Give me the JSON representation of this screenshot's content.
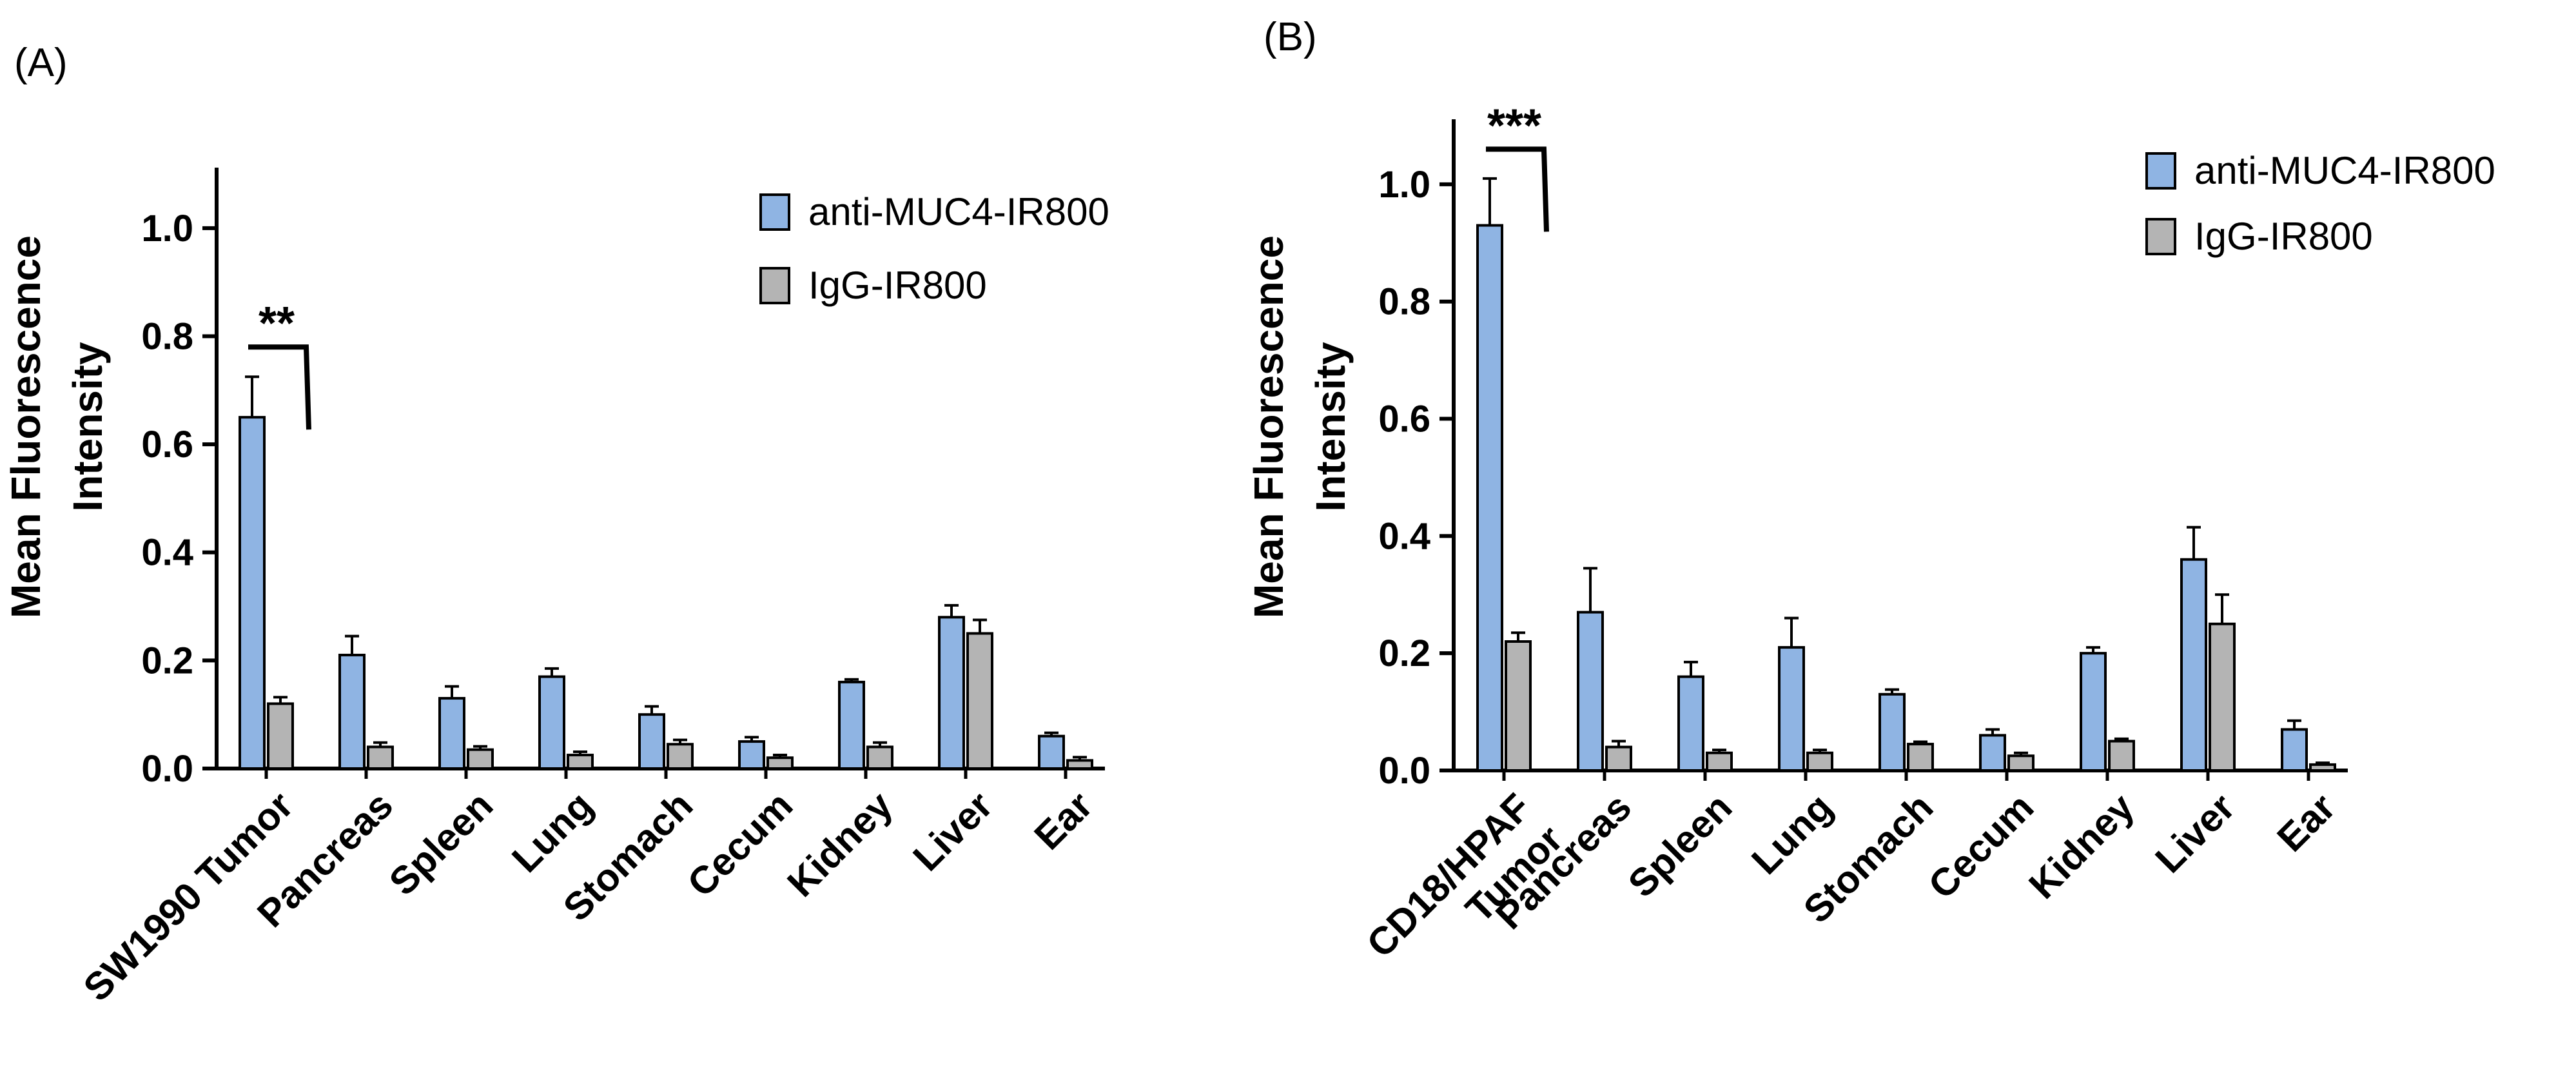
{
  "chart_data": [
    {
      "panel_label": "(A)",
      "type": "bar",
      "ylabel": [
        "Mean Fluorescence",
        "Intensity"
      ],
      "ylim": [
        0,
        1.1
      ],
      "yticks": [
        "0.0",
        "0.2",
        "0.4",
        "0.6",
        "0.8",
        "1.0"
      ],
      "categories": [
        [
          "SW1990 Tumor"
        ],
        [
          "Pancreas"
        ],
        [
          "Spleen"
        ],
        [
          "Lung"
        ],
        [
          "Stomach"
        ],
        [
          "Cecum"
        ],
        [
          "Kidney"
        ],
        [
          "Liver"
        ],
        [
          "Ear"
        ]
      ],
      "series": [
        {
          "name": "anti-MUC4-IR800",
          "color": "#8fb4e3",
          "values": [
            0.65,
            0.21,
            0.13,
            0.17,
            0.1,
            0.05,
            0.16,
            0.28,
            0.06
          ],
          "errors": [
            0.075,
            0.035,
            0.022,
            0.015,
            0.015,
            0.008,
            0.005,
            0.022,
            0.006
          ]
        },
        {
          "name": "IgG-IR800",
          "color": "#b4b4b4",
          "values": [
            0.12,
            0.04,
            0.035,
            0.025,
            0.045,
            0.02,
            0.04,
            0.25,
            0.015
          ],
          "errors": [
            0.012,
            0.008,
            0.006,
            0.006,
            0.008,
            0.005,
            0.008,
            0.025,
            0.006
          ]
        }
      ],
      "significance": {
        "label": "**",
        "category_index": 0,
        "level": 0.78
      },
      "legend_position": "top-right"
    },
    {
      "panel_label": "(B)",
      "type": "bar",
      "ylabel": [
        "Mean Fluorescence",
        "Intensity"
      ],
      "ylim": [
        0,
        1.1
      ],
      "yticks": [
        "0.0",
        "0.2",
        "0.4",
        "0.6",
        "0.8",
        "1.0"
      ],
      "categories": [
        [
          "CD18/HPAF",
          "Tumor"
        ],
        [
          "Pancreas"
        ],
        [
          "Spleen"
        ],
        [
          "Lung"
        ],
        [
          "Stomach"
        ],
        [
          "Cecum"
        ],
        [
          "Kidney"
        ],
        [
          "Liver"
        ],
        [
          "Ear"
        ]
      ],
      "series": [
        {
          "name": "anti-MUC4-IR800",
          "color": "#8fb4e3",
          "values": [
            0.93,
            0.27,
            0.16,
            0.21,
            0.13,
            0.06,
            0.2,
            0.36,
            0.07
          ],
          "errors": [
            0.08,
            0.075,
            0.025,
            0.05,
            0.008,
            0.01,
            0.01,
            0.055,
            0.015
          ]
        },
        {
          "name": "IgG-IR800",
          "color": "#b4b4b4",
          "values": [
            0.22,
            0.04,
            0.03,
            0.03,
            0.045,
            0.025,
            0.05,
            0.25,
            0.01
          ],
          "errors": [
            0.015,
            0.01,
            0.005,
            0.005,
            0.004,
            0.005,
            0.004,
            0.05,
            0.003
          ]
        }
      ],
      "significance": {
        "label": "***",
        "category_index": 0,
        "level": 1.06
      },
      "legend_position": "top-right"
    }
  ]
}
